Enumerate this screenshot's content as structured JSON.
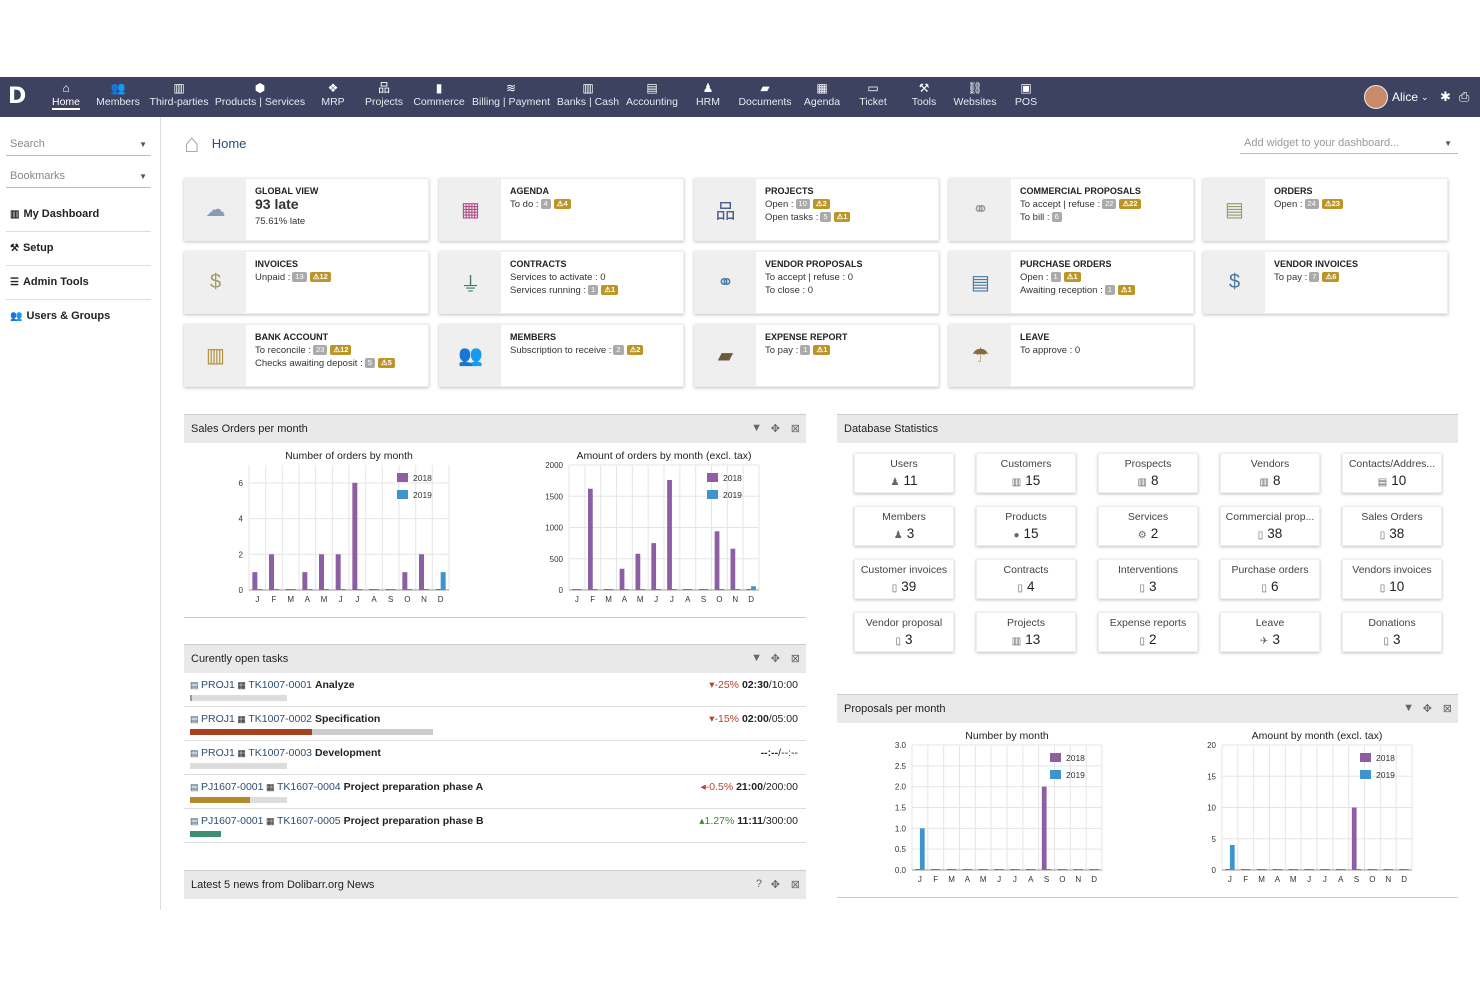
{
  "nav": {
    "items": [
      {
        "label": "Home",
        "icon": "home-icon",
        "glyph": "⌂",
        "x": 66
      },
      {
        "label": "Members",
        "icon": "members-icon",
        "glyph": "👥",
        "x": 118
      },
      {
        "label": "Third-parties",
        "icon": "building-icon",
        "glyph": "▥",
        "x": 179
      },
      {
        "label": "Products | Services",
        "icon": "cube-icon",
        "glyph": "⬢",
        "x": 260
      },
      {
        "label": "MRP",
        "icon": "cubes-icon",
        "glyph": "❖",
        "x": 333
      },
      {
        "label": "Projects",
        "icon": "sitemap-icon",
        "glyph": "品",
        "x": 384
      },
      {
        "label": "Commerce",
        "icon": "briefcase-icon",
        "glyph": "▮",
        "x": 439
      },
      {
        "label": "Billing | Payment",
        "icon": "coins-icon",
        "glyph": "≋",
        "x": 511
      },
      {
        "label": "Banks | Cash",
        "icon": "bank-icon",
        "glyph": "▥",
        "x": 588
      },
      {
        "label": "Accounting",
        "icon": "ledger-icon",
        "glyph": "▤",
        "x": 652
      },
      {
        "label": "HRM",
        "icon": "person-icon",
        "glyph": "♟",
        "x": 708
      },
      {
        "label": "Documents",
        "icon": "folder-icon",
        "glyph": "▰",
        "x": 765
      },
      {
        "label": "Agenda",
        "icon": "calendar-icon",
        "glyph": "▦",
        "x": 822
      },
      {
        "label": "Ticket",
        "icon": "ticket-icon",
        "glyph": "▭",
        "x": 873
      },
      {
        "label": "Tools",
        "icon": "wrench-icon",
        "glyph": "⚒",
        "x": 924
      },
      {
        "label": "Websites",
        "icon": "globe-icon",
        "glyph": "⛓",
        "x": 975
      },
      {
        "label": "POS",
        "icon": "cash-register-icon",
        "glyph": "▣",
        "x": 1026
      }
    ],
    "user": "Alice"
  },
  "sidebar": {
    "search": "Search",
    "bookmarks": "Bookmarks",
    "items": [
      "My Dashboard",
      "Setup",
      "Admin Tools",
      "Users & Groups"
    ]
  },
  "breadcrumb": "Home",
  "add_widget": "Add widget to your dashboard...",
  "boxes": [
    {
      "title": "GLOBAL VIEW",
      "lines": [
        "93 late",
        "75.61% late"
      ]
    },
    {
      "title": "AGENDA",
      "lines": [
        "To do :"
      ],
      "badges": [
        [
          "4",
          "4"
        ]
      ]
    },
    {
      "title": "PROJECTS",
      "lines": [
        "Open :",
        "Open tasks :"
      ],
      "badges": [
        [
          "10",
          "2"
        ],
        [
          "5",
          "1"
        ]
      ]
    },
    {
      "title": "COMMERCIAL PROPOSALS",
      "lines": [
        "To accept | refuse :",
        "To bill :"
      ],
      "badges": [
        [
          "22",
          "22"
        ],
        [
          "6",
          ""
        ]
      ]
    },
    {
      "title": "ORDERS",
      "lines": [
        "Open :"
      ],
      "badges": [
        [
          "24",
          "23"
        ]
      ]
    },
    {
      "title": "INVOICES",
      "lines": [
        "Unpaid :"
      ],
      "badges": [
        [
          "13",
          "12"
        ]
      ]
    },
    {
      "title": "CONTRACTS",
      "lines": [
        "Services to activate : 0",
        "Services running :"
      ],
      "badges": [
        [
          "",
          ""
        ],
        [
          "1",
          "1"
        ]
      ]
    },
    {
      "title": "VENDOR PROPOSALS",
      "lines": [
        "To accept | refuse : 0",
        "To close : 0"
      ]
    },
    {
      "title": "PURCHASE ORDERS",
      "lines": [
        "Open :",
        "Awaiting reception :"
      ],
      "badges": [
        [
          "1",
          "1"
        ],
        [
          "1",
          "1"
        ]
      ]
    },
    {
      "title": "VENDOR INVOICES",
      "lines": [
        "To pay :"
      ],
      "badges": [
        [
          "7",
          "6"
        ]
      ]
    },
    {
      "title": "BANK ACCOUNT",
      "lines": [
        "To reconcile :",
        "Checks awaiting deposit :"
      ],
      "badges": [
        [
          "23",
          "12"
        ],
        [
          "5",
          "5"
        ]
      ]
    },
    {
      "title": "MEMBERS",
      "lines": [
        "Subscription to receive :"
      ],
      "badges": [
        [
          "2",
          "2"
        ]
      ]
    },
    {
      "title": "EXPENSE REPORT",
      "lines": [
        "To pay :"
      ],
      "badges": [
        [
          "1",
          "1"
        ]
      ]
    },
    {
      "title": "LEAVE",
      "lines": [
        "To approve : 0"
      ]
    }
  ],
  "colors": {
    "nav": "#3c4260",
    "s2018": "#8e5ea2",
    "s2019": "#3e95cd",
    "warn": "#bc9526"
  },
  "sales_panel": {
    "title": "Sales Orders per month"
  },
  "tasks_panel": {
    "title": "Curently open tasks"
  },
  "news_panel": {
    "title": "Latest 5 news from Dolibarr.org News"
  },
  "db_panel": {
    "title": "Database Statistics"
  },
  "proposals_panel": {
    "title": "Proposals per month"
  },
  "stats": [
    {
      "label": "Users",
      "value": "11",
      "icon": "user-icon",
      "glyph": "♟"
    },
    {
      "label": "Customers",
      "value": "15",
      "icon": "building-icon",
      "glyph": "▥"
    },
    {
      "label": "Prospects",
      "value": "8",
      "icon": "building-icon",
      "glyph": "▥"
    },
    {
      "label": "Vendors",
      "value": "8",
      "icon": "building-icon",
      "glyph": "▥"
    },
    {
      "label": "Contacts/Addres...",
      "value": "10",
      "icon": "contact-icon",
      "glyph": "▤"
    },
    {
      "label": "Members",
      "value": "3",
      "icon": "user-icon",
      "glyph": "♟"
    },
    {
      "label": "Products",
      "value": "15",
      "icon": "product-icon",
      "glyph": "●"
    },
    {
      "label": "Services",
      "value": "2",
      "icon": "service-icon",
      "glyph": "⚙"
    },
    {
      "label": "Commercial prop...",
      "value": "38",
      "icon": "doc-icon",
      "glyph": "▯"
    },
    {
      "label": "Sales Orders",
      "value": "38",
      "icon": "doc-icon",
      "glyph": "▯"
    },
    {
      "label": "Customer invoices",
      "value": "39",
      "icon": "doc-icon",
      "glyph": "▯"
    },
    {
      "label": "Contracts",
      "value": "4",
      "icon": "doc-icon",
      "glyph": "▯"
    },
    {
      "label": "Interventions",
      "value": "3",
      "icon": "doc-icon",
      "glyph": "▯"
    },
    {
      "label": "Purchase orders",
      "value": "6",
      "icon": "doc-icon",
      "glyph": "▯"
    },
    {
      "label": "Vendors invoices",
      "value": "10",
      "icon": "doc-icon",
      "glyph": "▯"
    },
    {
      "label": "Vendor proposal",
      "value": "3",
      "icon": "doc-icon",
      "glyph": "▯"
    },
    {
      "label": "Projects",
      "value": "13",
      "icon": "project-icon",
      "glyph": "▥"
    },
    {
      "label": "Expense reports",
      "value": "2",
      "icon": "doc-icon",
      "glyph": "▯"
    },
    {
      "label": "Leave",
      "value": "3",
      "icon": "leave-icon",
      "glyph": "✈"
    },
    {
      "label": "Donations",
      "value": "3",
      "icon": "doc-icon",
      "glyph": "▯"
    }
  ],
  "tasks": [
    {
      "proj": "PROJ1",
      "ref": "TK1007-0001",
      "name": "Analyze",
      "pct": "-25%",
      "dir": "down",
      "time": "02:30",
      "total": "/10:00",
      "progress": 0.17,
      "fill": "#d0d0d0"
    },
    {
      "proj": "PROJ1",
      "ref": "TK1007-0002",
      "name": "Specification",
      "pct": "-15%",
      "dir": "down",
      "time": "02:00",
      "total": "/05:00",
      "progress": 0.5,
      "fill": "#a8421e"
    },
    {
      "proj": "PROJ1",
      "ref": "TK1007-0003",
      "name": "Development",
      "pct": "",
      "dir": "",
      "time": "--:--",
      "total": "/--:--",
      "progress": 0,
      "fill": "#ddd"
    },
    {
      "proj": "PJ1607-0001",
      "ref": "TK1607-0004",
      "name": "Project preparation phase A",
      "pct": "-0.5%",
      "dir": "mid",
      "time": "21:00",
      "total": "/200:00",
      "progress": 0.1,
      "fill": "#b28a2b"
    },
    {
      "proj": "PJ1607-0001",
      "ref": "TK1607-0005",
      "name": "Project preparation phase B",
      "pct": "1.27%",
      "dir": "up",
      "time": "11:11",
      "total": "/300:00",
      "progress": 0.05,
      "fill": "#3d9070"
    }
  ],
  "chart_data": [
    {
      "type": "bar",
      "title": "Number of orders by month",
      "categories": [
        "J",
        "F",
        "M",
        "A",
        "M",
        "J",
        "J",
        "A",
        "S",
        "O",
        "N",
        "D"
      ],
      "ylim": [
        0,
        7
      ],
      "yticks": [
        0,
        2,
        4,
        6
      ],
      "series": [
        {
          "name": "2018",
          "values": [
            1,
            2,
            0,
            1,
            2,
            2,
            6,
            0,
            0,
            1,
            2,
            0
          ]
        },
        {
          "name": "2019",
          "values": [
            0,
            0,
            0,
            0,
            0,
            0,
            0,
            0,
            0,
            0,
            0,
            1
          ]
        }
      ]
    },
    {
      "type": "bar",
      "title": "Amount of orders by month (excl. tax)",
      "categories": [
        "J",
        "F",
        "M",
        "A",
        "M",
        "J",
        "J",
        "A",
        "S",
        "O",
        "N",
        "D"
      ],
      "ylim": [
        0,
        2000
      ],
      "yticks": [
        0,
        500,
        1000,
        1500,
        2000
      ],
      "series": [
        {
          "name": "2018",
          "values": [
            0,
            1620,
            0,
            340,
            580,
            750,
            1760,
            0,
            0,
            940,
            660,
            0
          ]
        },
        {
          "name": "2019",
          "values": [
            0,
            0,
            0,
            0,
            0,
            0,
            0,
            0,
            0,
            0,
            0,
            60
          ]
        }
      ]
    },
    {
      "type": "bar",
      "title": "Number by month",
      "categories": [
        "J",
        "F",
        "M",
        "A",
        "M",
        "J",
        "J",
        "A",
        "S",
        "O",
        "N",
        "D"
      ],
      "ylim": [
        0,
        3
      ],
      "yticks": [
        0.0,
        0.5,
        1.0,
        1.5,
        2.0,
        2.5,
        3.0
      ],
      "series": [
        {
          "name": "2018",
          "values": [
            0,
            0,
            0,
            0,
            0,
            0,
            0,
            0,
            2,
            0,
            0,
            0
          ]
        },
        {
          "name": "2019",
          "values": [
            1,
            0,
            0,
            0,
            0,
            0,
            0,
            0,
            0,
            0,
            0,
            0
          ]
        }
      ]
    },
    {
      "type": "bar",
      "title": "Amount by month (excl. tax)",
      "categories": [
        "J",
        "F",
        "M",
        "A",
        "M",
        "J",
        "J",
        "A",
        "S",
        "O",
        "N",
        "D"
      ],
      "ylim": [
        0,
        20
      ],
      "yticks": [
        0,
        5,
        10,
        15,
        20
      ],
      "series": [
        {
          "name": "2018",
          "values": [
            0,
            0,
            0,
            0,
            0,
            0,
            0,
            0,
            10,
            0,
            0,
            0
          ]
        },
        {
          "name": "2019",
          "values": [
            4,
            0,
            0,
            0,
            0,
            0,
            0,
            0,
            0,
            0,
            0,
            0
          ]
        }
      ]
    }
  ]
}
